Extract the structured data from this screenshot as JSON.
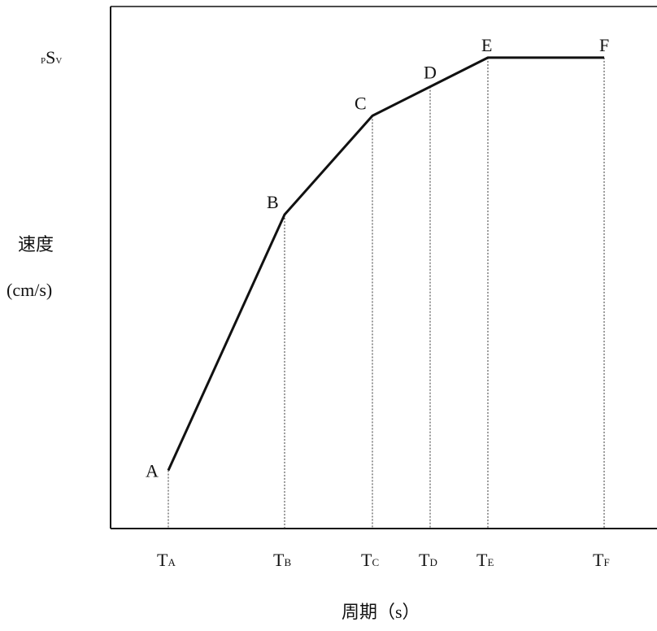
{
  "chart_data": {
    "type": "line",
    "title": "",
    "ylabel": "速度",
    "yunit": "(cm/s)",
    "xlabel": "周期（s）",
    "y_symbol": {
      "prefix": "P",
      "main": "S",
      "sub": "V"
    },
    "points": [
      {
        "label": "A",
        "tick_main": "T",
        "tick_sub": "A",
        "x": 1,
        "y": 1.0
      },
      {
        "label": "B",
        "tick_main": "T",
        "tick_sub": "B",
        "x": 2,
        "y": 5.4
      },
      {
        "label": "C",
        "tick_main": "T",
        "tick_sub": "C",
        "x": 3,
        "y": 7.1
      },
      {
        "label": "D",
        "tick_main": "T",
        "tick_sub": "D",
        "x": 4,
        "y": 7.6
      },
      {
        "label": "E",
        "tick_main": "T",
        "tick_sub": "E",
        "x": 5,
        "y": 8.1
      },
      {
        "label": "F",
        "tick_main": "T",
        "tick_sub": "F",
        "x": 6,
        "y": 8.1
      }
    ],
    "grid": false,
    "drop_lines": "dotted"
  }
}
